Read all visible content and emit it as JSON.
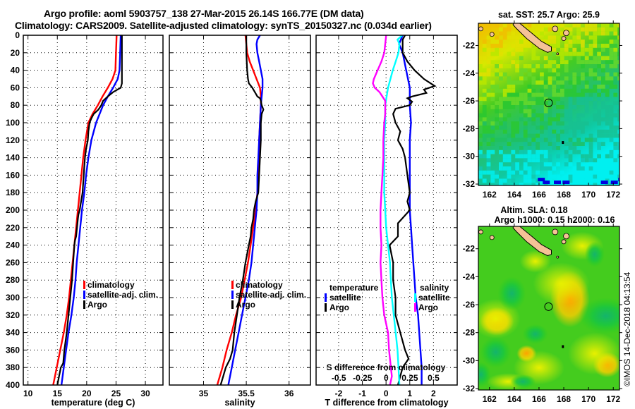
{
  "header": {
    "line1": "Argo profile: aoml 5903757_138 27-Mar-2015 26.14S 166.77E (DM data)",
    "line2": "Climatology: CARS2009. Satellite-adjusted climatology: synTS_20150327.nc (0.034d earlier)"
  },
  "colors": {
    "climatology": "#ff0000",
    "satellite": "#0000ff",
    "argo": "#000000",
    "t_diff_satellite": "#0000ff",
    "t_diff_argo": "#000000",
    "s_diff_satellite": "#00ffff",
    "s_diff_argo": "#ff00ff"
  },
  "chart_data": [
    {
      "type": "line",
      "name": "temperature-profile",
      "xlabel": "temperature (deg C)",
      "ylabel": "",
      "xlim": [
        9.2,
        33
      ],
      "ylim": [
        400,
        0
      ],
      "xticks": [
        10,
        15,
        20,
        25,
        30
      ],
      "yticks": [
        0,
        20,
        40,
        60,
        80,
        100,
        120,
        140,
        160,
        180,
        200,
        220,
        240,
        260,
        280,
        300,
        320,
        340,
        360,
        380,
        400
      ],
      "grid": true,
      "legend": {
        "position": "right-lower",
        "entries": [
          "climatology",
          "satellite-adj. clim.",
          "Argo"
        ]
      },
      "series": [
        {
          "name": "climatology",
          "color": "#ff0000",
          "depth": [
            0,
            20,
            40,
            50,
            60,
            70,
            80,
            90,
            100,
            120,
            140,
            160,
            180,
            200,
            220,
            240,
            260,
            280,
            300,
            320,
            340,
            360,
            380,
            400
          ],
          "values": [
            25.1,
            25.0,
            24.9,
            24.4,
            23.6,
            22.7,
            21.9,
            21.0,
            20.3,
            19.8,
            19.4,
            19.1,
            18.8,
            18.5,
            18.2,
            17.9,
            17.6,
            17.3,
            17.0,
            16.6,
            16.1,
            15.5,
            14.9,
            14.3
          ]
        },
        {
          "name": "satellite-adj. clim.",
          "color": "#0000ff",
          "depth": [
            0,
            20,
            40,
            50,
            60,
            70,
            80,
            90,
            100,
            120,
            140,
            160,
            180,
            200,
            220,
            240,
            260,
            280,
            300,
            320,
            340,
            360,
            380,
            400
          ],
          "values": [
            25.8,
            25.7,
            25.6,
            25.3,
            24.5,
            23.6,
            22.8,
            22.2,
            21.6,
            20.8,
            20.3,
            19.9,
            19.6,
            19.2,
            18.9,
            18.6,
            18.3,
            18.1,
            17.8,
            17.4,
            16.9,
            16.5,
            16.1,
            15.7
          ]
        },
        {
          "name": "Argo",
          "color": "#000000",
          "depth": [
            0,
            20,
            40,
            55,
            60,
            65,
            70,
            75,
            80,
            85,
            90,
            95,
            100,
            110,
            120,
            130,
            140,
            150,
            160,
            180,
            200,
            205,
            210,
            230,
            235,
            240,
            260,
            280,
            300,
            320,
            340,
            360,
            375,
            380,
            390,
            400
          ],
          "values": [
            26.0,
            26.0,
            26.0,
            26.0,
            25.8,
            24.5,
            23.6,
            22.8,
            22.5,
            22.0,
            21.2,
            20.8,
            20.5,
            20.3,
            20.2,
            19.9,
            19.7,
            19.6,
            19.5,
            19.3,
            18.8,
            18.6,
            18.5,
            18.2,
            18.0,
            17.9,
            17.7,
            17.5,
            17.2,
            16.9,
            16.6,
            16.2,
            16.0,
            15.6,
            15.3,
            15.0
          ]
        }
      ]
    },
    {
      "type": "line",
      "name": "salinity-profile",
      "xlabel": "salinity",
      "xlim": [
        34.6,
        36.25
      ],
      "ylim": [
        400,
        0
      ],
      "xticks": [
        35,
        35.5,
        36
      ],
      "grid": true,
      "legend": {
        "position": "right-lower",
        "entries": [
          "climatology",
          "satellite-adj. clim.",
          "Argo"
        ]
      },
      "series": [
        {
          "name": "climatology",
          "color": "#ff0000",
          "depth": [
            0,
            20,
            30,
            40,
            50,
            60,
            70,
            80,
            100,
            120,
            140,
            160,
            180,
            200,
            220,
            240,
            260,
            280,
            300,
            320,
            340,
            360,
            380,
            400
          ],
          "values": [
            35.49,
            35.51,
            35.54,
            35.58,
            35.62,
            35.66,
            35.67,
            35.67,
            35.66,
            35.65,
            35.65,
            35.64,
            35.63,
            35.61,
            35.58,
            35.55,
            35.52,
            35.48,
            35.44,
            35.38,
            35.33,
            35.27,
            35.22,
            35.16
          ]
        },
        {
          "name": "satellite-adj. clim.",
          "color": "#0000ff",
          "depth": [
            0,
            5,
            10,
            20,
            30,
            40,
            50,
            60,
            70,
            80,
            100,
            120,
            140,
            160,
            180,
            200,
            220,
            240,
            260,
            280,
            300,
            320,
            340,
            360,
            380,
            400
          ],
          "values": [
            35.66,
            35.63,
            35.62,
            35.63,
            35.65,
            35.67,
            35.69,
            35.69,
            35.68,
            35.67,
            35.66,
            35.65,
            35.64,
            35.63,
            35.63,
            35.62,
            35.6,
            35.58,
            35.56,
            35.53,
            35.49,
            35.45,
            35.41,
            35.37,
            35.33,
            35.29
          ]
        },
        {
          "name": "Argo",
          "color": "#000000",
          "depth": [
            0,
            10,
            20,
            40,
            50,
            55,
            60,
            65,
            70,
            72,
            75,
            80,
            85,
            90,
            100,
            120,
            140,
            160,
            180,
            190,
            200,
            210,
            220,
            230,
            240,
            250,
            260,
            280,
            300,
            320,
            340,
            350,
            360,
            370,
            380,
            390,
            400
          ],
          "values": [
            35.5,
            35.5,
            35.5,
            35.51,
            35.52,
            35.53,
            35.57,
            35.6,
            35.63,
            35.66,
            35.67,
            35.68,
            35.7,
            35.68,
            35.67,
            35.67,
            35.66,
            35.65,
            35.64,
            35.61,
            35.59,
            35.58,
            35.56,
            35.55,
            35.53,
            35.51,
            35.49,
            35.46,
            35.42,
            35.39,
            35.36,
            35.35,
            35.34,
            35.31,
            35.26,
            35.23,
            35.2
          ]
        }
      ]
    },
    {
      "type": "line",
      "name": "difference-profile",
      "xlabel": "T difference from climatology",
      "x2label": "S difference from climatology",
      "xlim": [
        -2.95,
        3.0
      ],
      "x2lim": [
        -0.74,
        0.75
      ],
      "ylim": [
        400,
        0
      ],
      "xticks": [
        -2,
        -1,
        0,
        1,
        2
      ],
      "x2ticks": [
        -0.5,
        -0.25,
        0,
        0.25,
        0.5
      ],
      "x2ticklabels": [
        "-0.5",
        "-0.25",
        "0",
        "0.25",
        "0.5"
      ],
      "grid": true,
      "legend": {
        "position": "lower",
        "groups": [
          {
            "title": "temperature",
            "entries": [
              "satellite",
              "Argo"
            ]
          },
          {
            "title": "salinity",
            "entries": [
              "satellite",
              "Argo"
            ]
          }
        ]
      },
      "series": [
        {
          "name": "temperature satellite",
          "axis": "T",
          "color": "#0000ff",
          "depth": [
            0,
            10,
            20,
            40,
            60,
            80,
            100,
            120,
            140,
            160,
            180,
            200,
            220,
            240,
            260,
            280,
            300,
            320,
            340,
            360,
            380,
            400
          ],
          "values": [
            0.7,
            0.55,
            0.7,
            0.85,
            1.0,
            1.0,
            1.05,
            1.0,
            1.0,
            1.0,
            1.0,
            1.0,
            1.05,
            1.1,
            1.15,
            1.2,
            1.25,
            1.35,
            1.4,
            1.45,
            1.5,
            1.5
          ]
        },
        {
          "name": "temperature Argo",
          "axis": "T",
          "color": "#000000",
          "depth": [
            0,
            5,
            10,
            20,
            30,
            40,
            50,
            58,
            62,
            66,
            70,
            72,
            76,
            80,
            84,
            90,
            100,
            110,
            120,
            130,
            140,
            160,
            180,
            190,
            200,
            215,
            230,
            240,
            260,
            280,
            300,
            320,
            340,
            360,
            370,
            380,
            390,
            400
          ],
          "values": [
            0.8,
            0.7,
            0.7,
            0.7,
            0.9,
            1.2,
            1.6,
            2.05,
            1.6,
            1.7,
            1.1,
            0.9,
            1.1,
            1.0,
            0.4,
            0.3,
            0.4,
            0.6,
            0.5,
            0.7,
            0.8,
            0.9,
            1.0,
            0.9,
            1.0,
            0.5,
            0.5,
            0.15,
            0.3,
            0.3,
            0.4,
            0.4,
            0.6,
            0.8,
            0.95,
            0.7,
            0.6,
            0.5
          ]
        },
        {
          "name": "salinity satellite",
          "axis": "S",
          "color": "#00ffff",
          "depth": [
            0,
            5,
            10,
            20,
            30,
            40,
            60,
            80,
            100,
            120,
            140,
            160,
            180,
            200,
            220,
            240,
            260,
            280,
            300,
            320,
            340,
            360,
            380,
            400
          ],
          "values": [
            0.17,
            0.12,
            0.14,
            0.13,
            0.1,
            0.07,
            0.02,
            -0.01,
            -0.01,
            -0.02,
            -0.02,
            -0.02,
            -0.02,
            -0.01,
            0.0,
            0.02,
            0.04,
            0.05,
            0.06,
            0.08,
            0.1,
            0.12,
            0.13,
            0.14
          ]
        },
        {
          "name": "salinity Argo",
          "axis": "S",
          "color": "#ff00ff",
          "depth": [
            0,
            10,
            20,
            30,
            40,
            50,
            55,
            60,
            65,
            70,
            75,
            80,
            90,
            100,
            120,
            140,
            160,
            180,
            200,
            220,
            240,
            260,
            280,
            300,
            320,
            340,
            360,
            380,
            390,
            400
          ],
          "values": [
            0.0,
            -0.01,
            -0.02,
            -0.05,
            -0.09,
            -0.13,
            -0.14,
            -0.12,
            -0.07,
            -0.04,
            -0.01,
            -0.01,
            -0.01,
            -0.02,
            -0.03,
            -0.03,
            -0.04,
            -0.05,
            -0.06,
            -0.06,
            -0.05,
            -0.06,
            -0.05,
            -0.04,
            -0.02,
            0.02,
            0.03,
            0.05,
            0.06,
            0.04
          ]
        }
      ]
    },
    {
      "type": "heatmap",
      "name": "sst-map",
      "title": "sat. SST: 25.7 Argo: 25.9",
      "xlim": [
        161.1,
        172.5
      ],
      "ylim": [
        -32.1,
        -20.4
      ],
      "xticks": [
        162,
        164,
        166,
        168,
        170,
        172
      ],
      "yticks": [
        -22,
        -24,
        -26,
        -28,
        -30,
        -32
      ],
      "marker": {
        "lon": 166.77,
        "lat": -26.14
      }
    },
    {
      "type": "heatmap",
      "name": "sla-map",
      "title": "Altim. SLA: 0.18",
      "subtitle": "Argo h1000: 0.15 h2000: 0.16",
      "xlim": [
        161.1,
        172.5
      ],
      "ylim": [
        -32.1,
        -20.4
      ],
      "xticks": [
        162,
        164,
        166,
        168,
        170,
        172
      ],
      "yticks": [
        -22,
        -24,
        -26,
        -28,
        -30,
        -32
      ],
      "marker": {
        "lon": 166.77,
        "lat": -26.14
      }
    }
  ],
  "credit": "©IMOS 14-Dec-2018 04:13:54"
}
